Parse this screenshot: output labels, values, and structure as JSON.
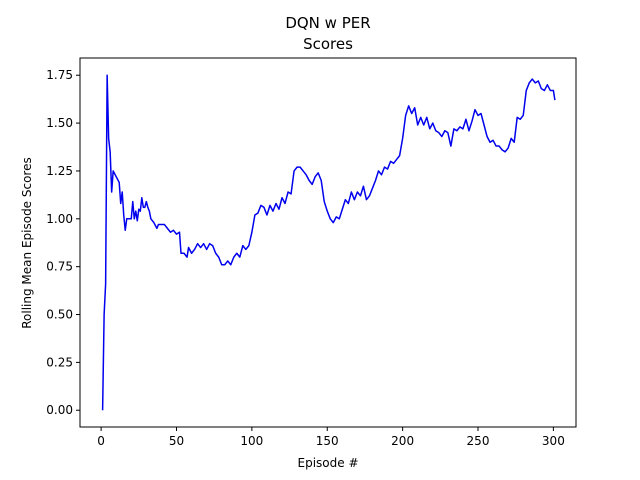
{
  "chart_data": {
    "type": "line",
    "title_line1": "DQN w PER",
    "title_line2": "Scores",
    "xlabel": "Episode #",
    "ylabel": "Rolling Mean Episode Scores",
    "xlim": [
      -14,
      315
    ],
    "ylim": [
      -0.0875,
      1.84
    ],
    "xticks": [
      0,
      50,
      100,
      150,
      200,
      250,
      300
    ],
    "xtick_labels": [
      "0",
      "50",
      "100",
      "150",
      "200",
      "250",
      "300"
    ],
    "yticks": [
      0.0,
      0.25,
      0.5,
      0.75,
      1.0,
      1.25,
      1.5,
      1.75
    ],
    "ytick_labels": [
      "0.00",
      "0.25",
      "0.50",
      "0.75",
      "1.00",
      "1.25",
      "1.50",
      "1.75"
    ],
    "grid": false,
    "legend": "none",
    "series": [
      {
        "color": "#0000ee",
        "x": [
          1,
          2,
          3,
          4,
          5,
          6,
          7,
          8,
          10,
          12,
          13,
          14,
          15,
          16,
          17,
          18,
          20,
          21,
          22,
          23,
          24,
          25,
          26,
          27,
          28,
          29,
          30,
          31,
          32,
          33,
          35,
          37,
          38,
          40,
          42,
          44,
          46,
          48,
          50,
          52,
          53,
          55,
          57,
          58,
          60,
          62,
          64,
          66,
          68,
          70,
          72,
          74,
          76,
          78,
          80,
          82,
          84,
          86,
          88,
          90,
          92,
          94,
          96,
          98,
          100,
          102,
          104,
          106,
          108,
          110,
          112,
          114,
          116,
          118,
          120,
          122,
          124,
          126,
          128,
          130,
          132,
          134,
          136,
          138,
          140,
          142,
          144,
          146,
          148,
          150,
          152,
          154,
          156,
          158,
          160,
          162,
          164,
          166,
          168,
          170,
          172,
          174,
          176,
          178,
          180,
          182,
          184,
          186,
          188,
          190,
          192,
          194,
          196,
          198,
          200,
          202,
          204,
          206,
          208,
          210,
          212,
          214,
          216,
          218,
          220,
          222,
          224,
          226,
          228,
          230,
          232,
          234,
          236,
          238,
          240,
          242,
          244,
          246,
          248,
          250,
          252,
          254,
          256,
          258,
          260,
          262,
          264,
          266,
          268,
          270,
          272,
          274,
          276,
          278,
          280,
          282,
          284,
          286,
          288,
          290,
          292,
          294,
          296,
          298,
          300,
          301
        ],
        "y": [
          0.0,
          0.5,
          0.66,
          1.75,
          1.42,
          1.35,
          1.14,
          1.25,
          1.22,
          1.19,
          1.08,
          1.14,
          1.02,
          0.94,
          1.0,
          1.0,
          1.0,
          1.09,
          1.0,
          1.04,
          0.99,
          1.05,
          1.04,
          1.11,
          1.06,
          1.06,
          1.09,
          1.06,
          1.04,
          1.0,
          0.98,
          0.95,
          0.97,
          0.97,
          0.97,
          0.95,
          0.93,
          0.94,
          0.92,
          0.93,
          0.82,
          0.82,
          0.8,
          0.85,
          0.82,
          0.84,
          0.87,
          0.85,
          0.87,
          0.84,
          0.87,
          0.86,
          0.82,
          0.8,
          0.76,
          0.76,
          0.78,
          0.76,
          0.8,
          0.82,
          0.8,
          0.86,
          0.84,
          0.86,
          0.93,
          1.02,
          1.03,
          1.07,
          1.06,
          1.02,
          1.07,
          1.04,
          1.08,
          1.05,
          1.11,
          1.08,
          1.14,
          1.13,
          1.25,
          1.27,
          1.27,
          1.25,
          1.23,
          1.2,
          1.18,
          1.22,
          1.24,
          1.2,
          1.09,
          1.04,
          1.0,
          0.98,
          1.01,
          1.0,
          1.05,
          1.1,
          1.08,
          1.14,
          1.1,
          1.14,
          1.12,
          1.17,
          1.1,
          1.12,
          1.16,
          1.2,
          1.25,
          1.23,
          1.27,
          1.26,
          1.3,
          1.29,
          1.31,
          1.33,
          1.42,
          1.54,
          1.59,
          1.55,
          1.58,
          1.49,
          1.53,
          1.49,
          1.53,
          1.47,
          1.5,
          1.46,
          1.45,
          1.43,
          1.46,
          1.45,
          1.38,
          1.47,
          1.46,
          1.48,
          1.47,
          1.52,
          1.46,
          1.51,
          1.57,
          1.54,
          1.55,
          1.49,
          1.43,
          1.4,
          1.41,
          1.38,
          1.38,
          1.36,
          1.35,
          1.37,
          1.42,
          1.4,
          1.53,
          1.52,
          1.54,
          1.67,
          1.71,
          1.73,
          1.71,
          1.72,
          1.68,
          1.67,
          1.7,
          1.67,
          1.67,
          1.62
        ]
      }
    ]
  }
}
